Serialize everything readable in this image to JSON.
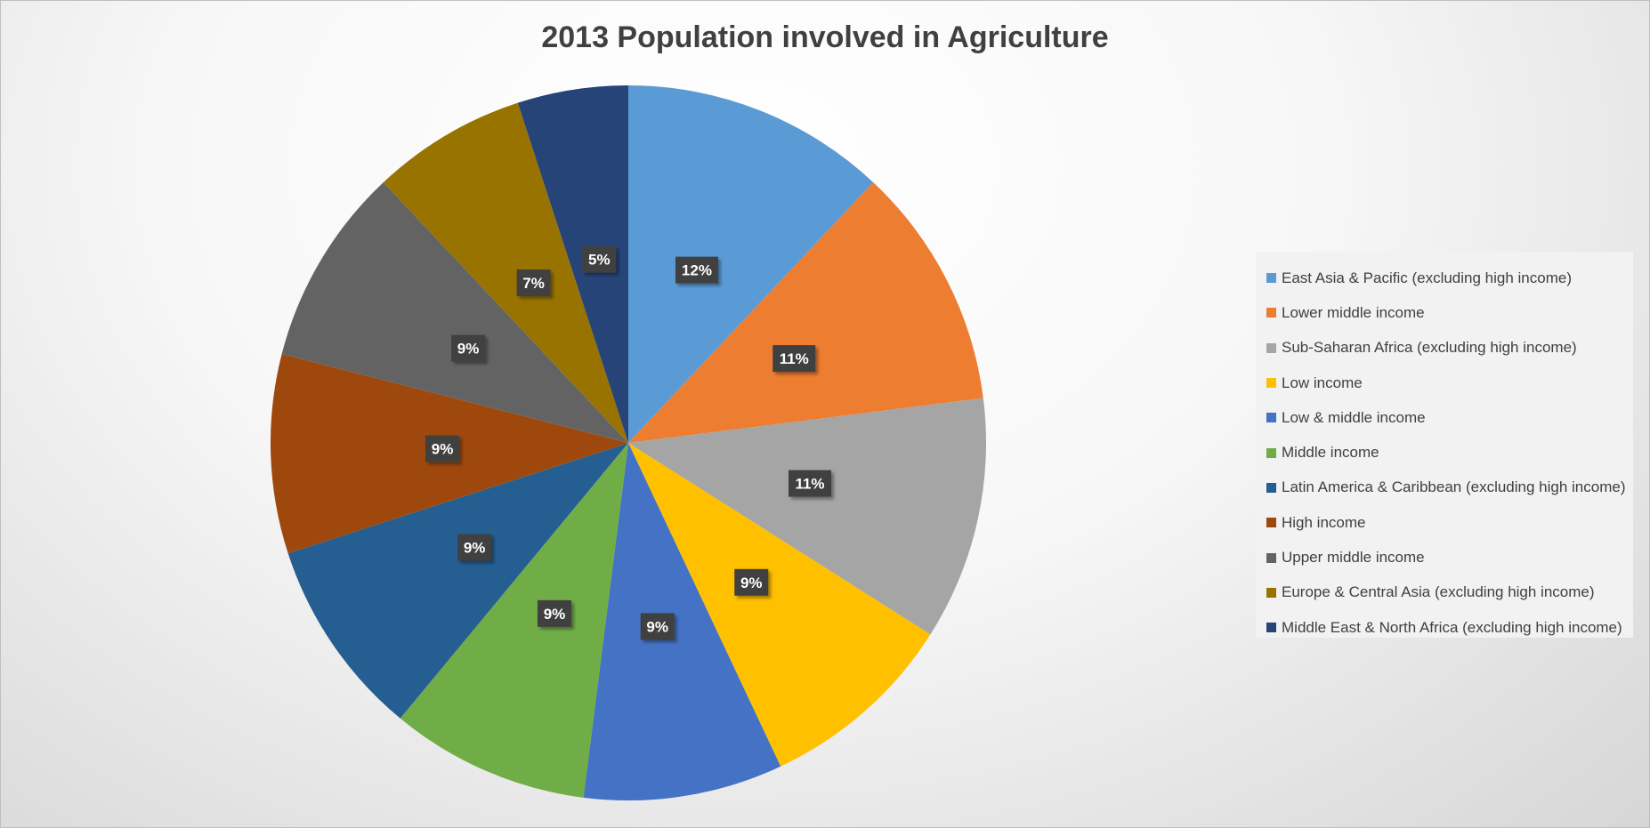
{
  "chart_data": {
    "type": "pie",
    "title": "2013 Population involved in Agriculture",
    "slices": [
      {
        "name": "East Asia & Pacific (excluding high income)",
        "value": 12,
        "label": "12%",
        "color": "#5b9bd5"
      },
      {
        "name": "Lower middle income",
        "value": 11,
        "label": "11%",
        "color": "#ed7d31"
      },
      {
        "name": "Sub-Saharan Africa (excluding high income)",
        "value": 11,
        "label": "11%",
        "color": "#a5a5a5"
      },
      {
        "name": "Low income",
        "value": 9,
        "label": "9%",
        "color": "#ffc000"
      },
      {
        "name": "Low & middle income",
        "value": 9,
        "label": "9%",
        "color": "#4472c4"
      },
      {
        "name": "Middle income",
        "value": 9,
        "label": "9%",
        "color": "#70ad47"
      },
      {
        "name": "Latin America & Caribbean (excluding high income)",
        "value": 9,
        "label": "9%",
        "color": "#255e91"
      },
      {
        "name": "High income",
        "value": 9,
        "label": "9%",
        "color": "#9e480e"
      },
      {
        "name": "Upper middle income",
        "value": 9,
        "label": "9%",
        "color": "#636363"
      },
      {
        "name": "Europe & Central Asia (excluding high income)",
        "value": 7,
        "label": "7%",
        "color": "#997300"
      },
      {
        "name": "Middle East & North Africa (excluding high income)",
        "value": 5,
        "label": "5%",
        "color": "#264478"
      }
    ],
    "legend_position": "right",
    "data_label_style": "dark boxed"
  }
}
